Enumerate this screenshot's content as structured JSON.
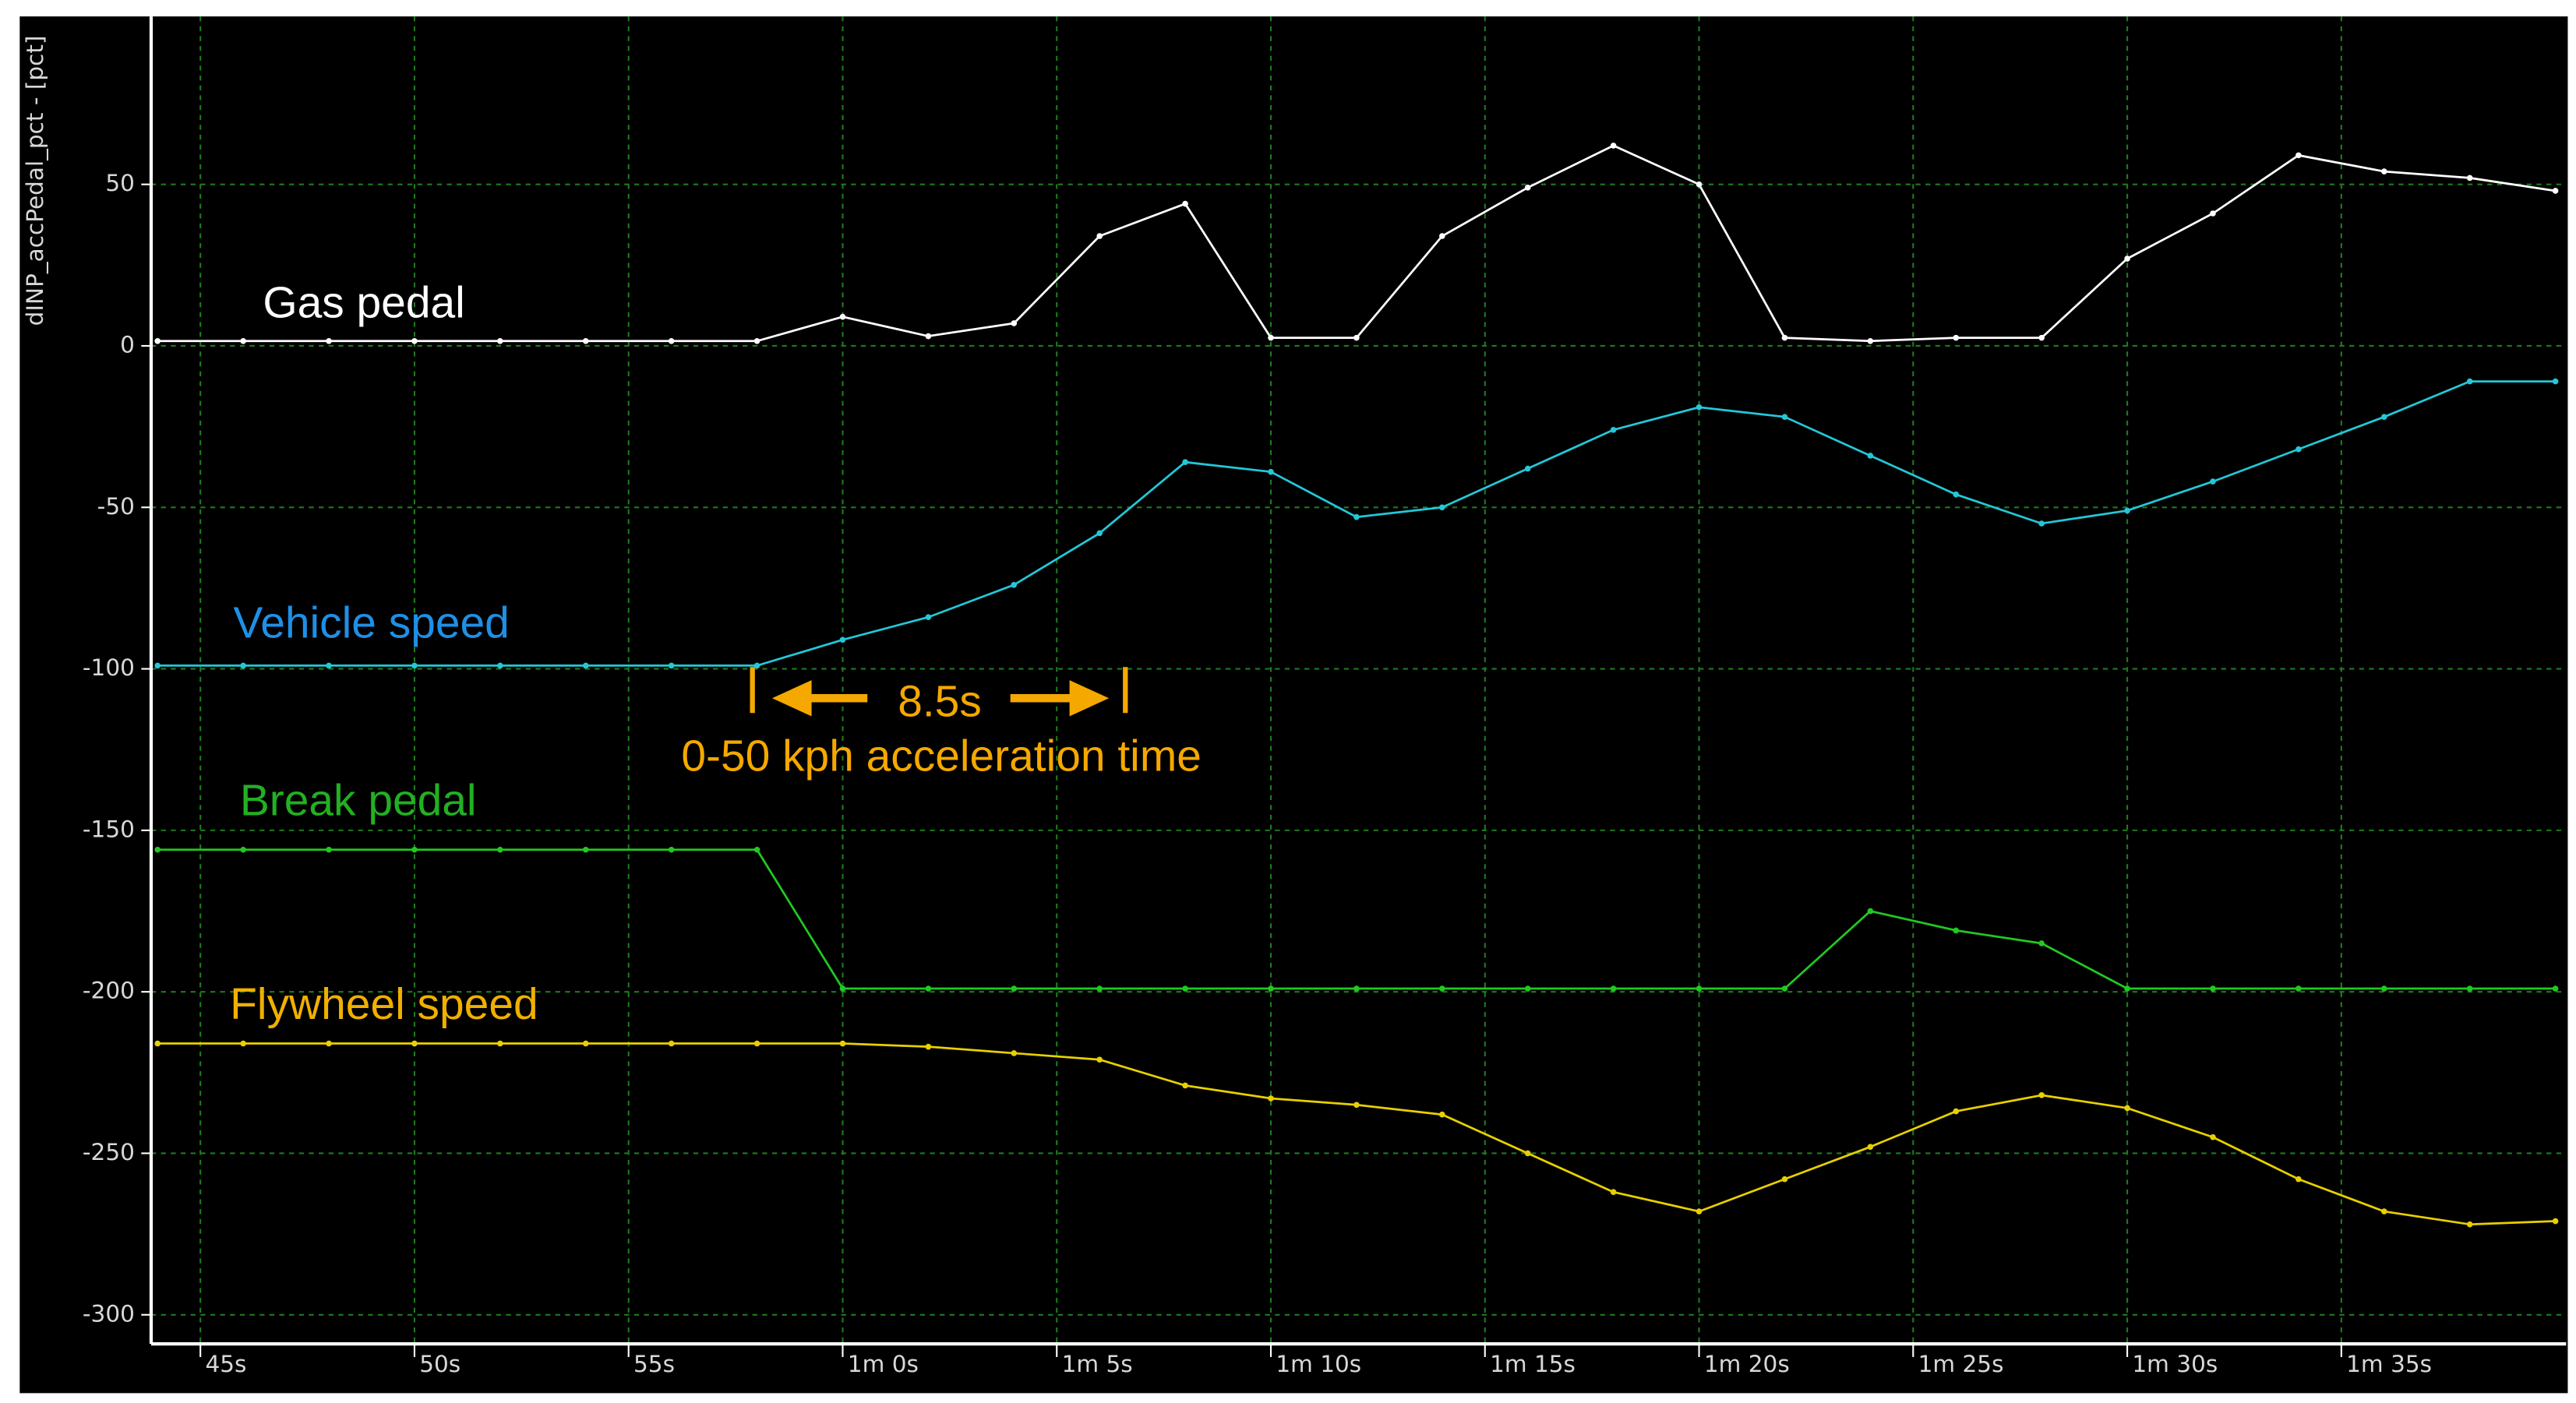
{
  "chart_data": {
    "type": "line",
    "y_axis_label": "dINP_accPedal_pct - [pct]",
    "xlim": [
      43.85,
      100.25
    ],
    "ylim": [
      -309,
      102
    ],
    "xticks": [
      {
        "value": 45,
        "label": "45s"
      },
      {
        "value": 50,
        "label": "50s"
      },
      {
        "value": 55,
        "label": "55s"
      },
      {
        "value": 60,
        "label": "1m 0s"
      },
      {
        "value": 65,
        "label": "1m 5s"
      },
      {
        "value": 70,
        "label": "1m 10s"
      },
      {
        "value": 75,
        "label": "1m 15s"
      },
      {
        "value": 80,
        "label": "1m 20s"
      },
      {
        "value": 85,
        "label": "1m 25s"
      },
      {
        "value": 90,
        "label": "1m 30s"
      },
      {
        "value": 95,
        "label": "1m 35s"
      }
    ],
    "yticks": [
      -300,
      -250,
      -200,
      -150,
      -100,
      -50,
      0,
      50
    ],
    "grid": true,
    "x": [
      44,
      46,
      48,
      50,
      52,
      54,
      56,
      58,
      60,
      62,
      64,
      66,
      68,
      70,
      72,
      74,
      76,
      78,
      80,
      82,
      84,
      86,
      88,
      90,
      92,
      94,
      96,
      98,
      100
    ],
    "series": [
      {
        "name": "Gas pedal",
        "color": "#ffffff",
        "label_color": "#ffffff",
        "values": [
          1.5,
          1.5,
          1.5,
          1.5,
          1.5,
          1.5,
          1.5,
          1.5,
          9,
          3,
          7,
          34,
          44,
          2.5,
          2.5,
          34,
          49,
          62,
          50,
          2.5,
          1.5,
          2.5,
          2.5,
          27,
          41,
          59,
          54,
          52,
          48
        ]
      },
      {
        "name": "Vehicle speed",
        "color": "#22c8d8",
        "label_color": "#1e90e6",
        "values": [
          -99,
          -99,
          -99,
          -99,
          -99,
          -99,
          -99,
          -99,
          -91,
          -84,
          -74,
          -58,
          -36,
          -39,
          -53,
          -50,
          -38,
          -26,
          -19,
          -22,
          -34,
          -46,
          -55,
          -51,
          -42,
          -32,
          -22,
          -11,
          -11
        ]
      },
      {
        "name": "Break pedal",
        "color": "#22c822",
        "label_color": "#22b022",
        "values": [
          -156,
          -156,
          -156,
          -156,
          -156,
          -156,
          -156,
          -156,
          -199,
          -199,
          -199,
          -199,
          -199,
          -199,
          -199,
          -199,
          -199,
          -199,
          -199,
          -199,
          -175,
          -181,
          -185,
          -199,
          -199,
          -199,
          -199,
          -199,
          -199
        ]
      },
      {
        "name": "Flywheel speed",
        "color": "#e8d000",
        "label_color": "#f0b000",
        "values": [
          -216,
          -216,
          -216,
          -216,
          -216,
          -216,
          -216,
          -216,
          -216,
          -217,
          -219,
          -221,
          -229,
          -233,
          -235,
          -238,
          -250,
          -262,
          -268,
          -258,
          -248,
          -237,
          -232,
          -236,
          -245,
          -258,
          -268,
          -272,
          -271
        ]
      }
    ],
    "annotations": [
      "8.5s",
      "0-50 kph acceleration time"
    ],
    "annotation_color": "#f5a800"
  }
}
